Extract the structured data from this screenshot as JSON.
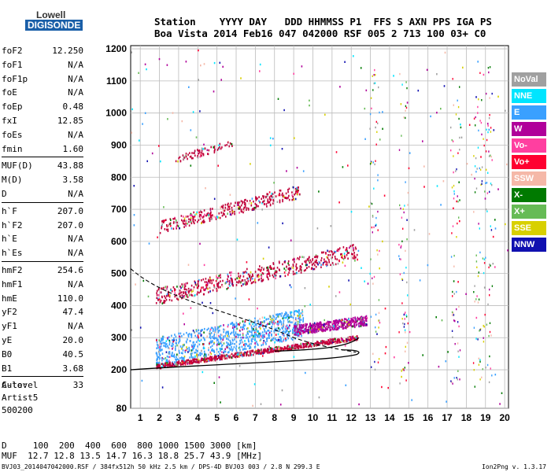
{
  "logo": {
    "line1": "Lowell",
    "line2": "DIGISONDE"
  },
  "header": {
    "row1": "Station    YYYY DAY   DDD HHMMSS P1  FFS S AXN PPS IGA PS",
    "row2": "Boa Vista 2014 Feb16 047 042000 RSF 005 2 713 100 03+ C0"
  },
  "params": [
    [
      [
        "foF2",
        "12.250"
      ],
      [
        "foF1",
        "N/A"
      ],
      [
        "foF1p",
        "N/A"
      ],
      [
        "foE",
        "N/A"
      ],
      [
        "foEp",
        "0.48"
      ],
      [
        "fxI",
        "12.85"
      ],
      [
        "foEs",
        "N/A"
      ],
      [
        "fmin",
        "1.60"
      ]
    ],
    [
      [
        "MUF(D)",
        "43.88"
      ],
      [
        "M(D)",
        "3.58"
      ],
      [
        "D",
        "N/A"
      ]
    ],
    [
      [
        "h`F",
        "207.0"
      ],
      [
        "h`F2",
        "207.0"
      ],
      [
        "h`E",
        "N/A"
      ],
      [
        "h`Es",
        "N/A"
      ]
    ],
    [
      [
        "hmF2",
        "254.6"
      ],
      [
        "hmF1",
        "N/A"
      ],
      [
        "hmE",
        "110.0"
      ],
      [
        "yF2",
        "47.4"
      ],
      [
        "yF1",
        "N/A"
      ],
      [
        "yE",
        "20.0"
      ],
      [
        "B0",
        "40.5"
      ],
      [
        "B1",
        "3.68"
      ]
    ],
    [
      [
        "C-level",
        "33"
      ]
    ]
  ],
  "extra": [
    "Auto:",
    "Artist5",
    "500200"
  ],
  "footer": {
    "row1": "D     100  200  400  600  800 1000 1500 3000 [km]",
    "row2": "MUF  12.7 12.8 13.5 14.7 16.3 18.8 25.7 43.9 [MHz]",
    "line": "BVJ03_2014047042000.RSF / 384fx512h 50 kHz 2.5 km / DPS-4D BVJ03 003 / 2.8 N 299.3 E",
    "version": "Ion2Png v. 1.3.17"
  },
  "legend": [
    {
      "label": "NoVal",
      "color": "#a0a0a0"
    },
    {
      "label": "NNE",
      "color": "#00e5ff"
    },
    {
      "label": "E",
      "color": "#3aa0ff"
    },
    {
      "label": "W",
      "color": "#b0009a"
    },
    {
      "label": "Vo-",
      "color": "#ff3fa0"
    },
    {
      "label": "Vo+",
      "color": "#ff0030"
    },
    {
      "label": "SSW",
      "color": "#f5b8a8"
    },
    {
      "label": "X-",
      "color": "#007a00"
    },
    {
      "label": "X+",
      "color": "#66bb55"
    },
    {
      "label": "SSE",
      "color": "#d8d000"
    },
    {
      "label": "NNW",
      "color": "#1010b0"
    }
  ],
  "chart_data": {
    "type": "scatter",
    "title": "",
    "xlabel": "",
    "ylabel": "",
    "xlim": [
      0.5,
      20.2
    ],
    "ylim": [
      80,
      1210
    ],
    "xticks": [
      1,
      2,
      3,
      4,
      5,
      6,
      7,
      8,
      9,
      10,
      11,
      12,
      13,
      14,
      15,
      16,
      17,
      18,
      19,
      20
    ],
    "yticks": [
      80,
      200,
      300,
      400,
      500,
      600,
      700,
      800,
      900,
      1000,
      1100,
      1200
    ],
    "grid": true,
    "traces": [
      {
        "name": "F2 o-trace",
        "color": "#c0003a",
        "f_start": 1.8,
        "f_end": 12.3,
        "h_start": 210,
        "h_end": 300
      },
      {
        "name": "F2 o-trace upper",
        "color": "#b0009a",
        "f_start": 9.0,
        "f_end": 12.8,
        "h_start": 320,
        "h_end": 350
      },
      {
        "name": "diffuse spread",
        "color": "#3aa0ff",
        "f_start": 1.8,
        "f_end": 9.5,
        "h_start": 240,
        "h_end": 330
      },
      {
        "name": "2nd multiple",
        "color": "#c0003a",
        "f_start": 1.8,
        "f_end": 12.3,
        "h_start": 420,
        "h_end": 560
      },
      {
        "name": "3rd multiple",
        "color": "#c0003a",
        "f_start": 2.0,
        "f_end": 9.3,
        "h_start": 640,
        "h_end": 750
      },
      {
        "name": "4th multiple",
        "color": "#c0003a",
        "f_start": 2.8,
        "f_end": 5.8,
        "h_start": 850,
        "h_end": 905
      }
    ],
    "profile": {
      "solid_start": [
        0.5,
        200
      ],
      "peak_f": 12.25,
      "peak_h": 254.6,
      "dashed_start": [
        0.5,
        515
      ]
    }
  }
}
